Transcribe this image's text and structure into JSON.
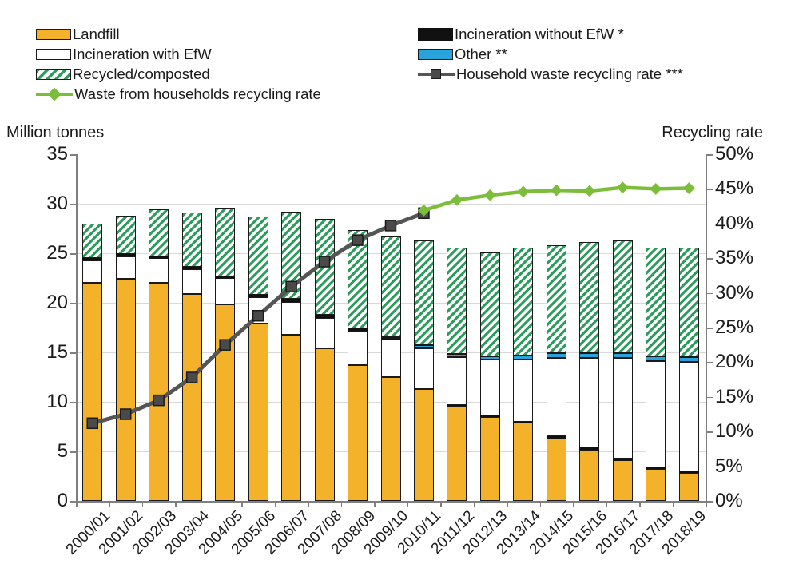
{
  "figure": {
    "left_axis_title": "Million tonnes",
    "right_axis_title": "Recycling rate"
  },
  "legend": {
    "columns": [
      [
        {
          "swatch": "landfill",
          "label": "Landfill"
        },
        {
          "swatch": "incw",
          "label": "Incineration with EfW"
        },
        {
          "swatch": "recycled",
          "label": "Recycled/composted"
        },
        {
          "swatch": "line-green-diamond",
          "label": "Waste from households recycling rate"
        }
      ],
      [
        {
          "swatch": "incwo",
          "label": "Incineration without EfW *"
        },
        {
          "swatch": "other",
          "label": "Other **"
        },
        {
          "swatch": "line-gray-square",
          "label": "Household waste recycling rate ***"
        }
      ]
    ]
  },
  "colors": {
    "landfill": "#F3B229",
    "incineration_with_efw": "#FFFFFF",
    "incineration_without_efw": "#111111",
    "other": "#29A3DC",
    "recycled_stripe": "#2E9C5C",
    "household_line": "#555555",
    "household_marker": "#4A4A4A",
    "wfh_line": "#7CBE3A",
    "grid": "#D9D9D9",
    "axis": "#7F7F7F",
    "text": "#1A1A1A",
    "segment_border": "#1A1A1A"
  },
  "chart_data": {
    "type": "bar",
    "subtype": "stacked-bars-with-line-overlay",
    "title": "",
    "categories": [
      "2000/01",
      "2001/02",
      "2002/03",
      "2003/04",
      "2004/05",
      "2005/06",
      "2006/07",
      "2007/08",
      "2008/09",
      "2009/10",
      "2010/11",
      "2011/12",
      "2012/13",
      "2013/14",
      "2014/15",
      "2015/16",
      "2016/17",
      "2017/18",
      "2018/19"
    ],
    "left_axis": {
      "title": "Million tonnes",
      "min": 0,
      "max": 35,
      "tick_step": 5
    },
    "right_axis": {
      "title": "Recycling rate",
      "min": 0,
      "max": 50,
      "tick_step": 5,
      "unit": "%"
    },
    "grid": "horizontal gridlines at left-axis steps",
    "legend_position": "top, two columns",
    "bar_series": [
      {
        "name": "Landfill",
        "color_key": "landfill",
        "values": [
          22.0,
          22.4,
          22.0,
          20.9,
          19.8,
          17.9,
          16.8,
          15.4,
          13.7,
          12.5,
          11.3,
          9.6,
          8.5,
          7.9,
          6.3,
          5.2,
          4.1,
          3.2,
          2.8
        ]
      },
      {
        "name": "Incineration with EfW",
        "color_key": "incineration_with_efw",
        "values": [
          2.3,
          2.3,
          2.5,
          2.5,
          2.7,
          2.7,
          3.3,
          3.1,
          3.5,
          3.8,
          4.1,
          4.8,
          5.7,
          6.3,
          7.9,
          9.0,
          10.1,
          10.7,
          11.0
        ]
      },
      {
        "name": "Incineration without EfW *",
        "color_key": "incineration_without_efw",
        "values": [
          0.2,
          0.2,
          0.2,
          0.2,
          0.2,
          0.2,
          0.3,
          0.3,
          0.2,
          0.1,
          0.1,
          0.1,
          0.1,
          0.1,
          0.2,
          0.2,
          0.2,
          0.2,
          0.2
        ]
      },
      {
        "name": "Other **",
        "color_key": "other",
        "values": [
          0,
          0,
          0,
          0,
          0,
          0,
          0,
          0,
          0,
          0.1,
          0.2,
          0.3,
          0.3,
          0.4,
          0.5,
          0.5,
          0.5,
          0.5,
          0.5
        ]
      },
      {
        "name": "Recycled/composted",
        "color_key": "recycled",
        "values": [
          3.5,
          3.9,
          4.7,
          5.5,
          6.9,
          7.9,
          8.8,
          9.7,
          9.9,
          10.2,
          10.6,
          10.8,
          10.5,
          10.9,
          10.9,
          11.2,
          11.4,
          11.0,
          11.1
        ]
      }
    ],
    "stack_orders": {
      "until_2010_11": [
        "Landfill",
        "Incineration with EfW",
        "Incineration without EfW *",
        "Other **",
        "Recycled/composted"
      ],
      "from_2011_12": [
        "Landfill",
        "Incineration without EfW *",
        "Incineration with EfW",
        "Other **",
        "Recycled/composted"
      ],
      "switch_index": 11
    },
    "line_series": [
      {
        "name": "Household waste recycling rate ***",
        "axis": "right",
        "marker": "square",
        "color_key": "household_line",
        "values": [
          11.2,
          12.5,
          14.5,
          17.8,
          22.5,
          26.7,
          30.9,
          34.5,
          37.6,
          39.7,
          41.5,
          null,
          null,
          null,
          null,
          null,
          null,
          null,
          null
        ]
      },
      {
        "name": "Waste from households recycling rate",
        "axis": "right",
        "marker": "diamond",
        "color_key": "wfh_line",
        "values": [
          null,
          null,
          null,
          null,
          null,
          null,
          null,
          null,
          null,
          null,
          41.9,
          43.4,
          44.1,
          44.6,
          44.8,
          44.7,
          45.2,
          45.0,
          45.1
        ]
      }
    ]
  }
}
